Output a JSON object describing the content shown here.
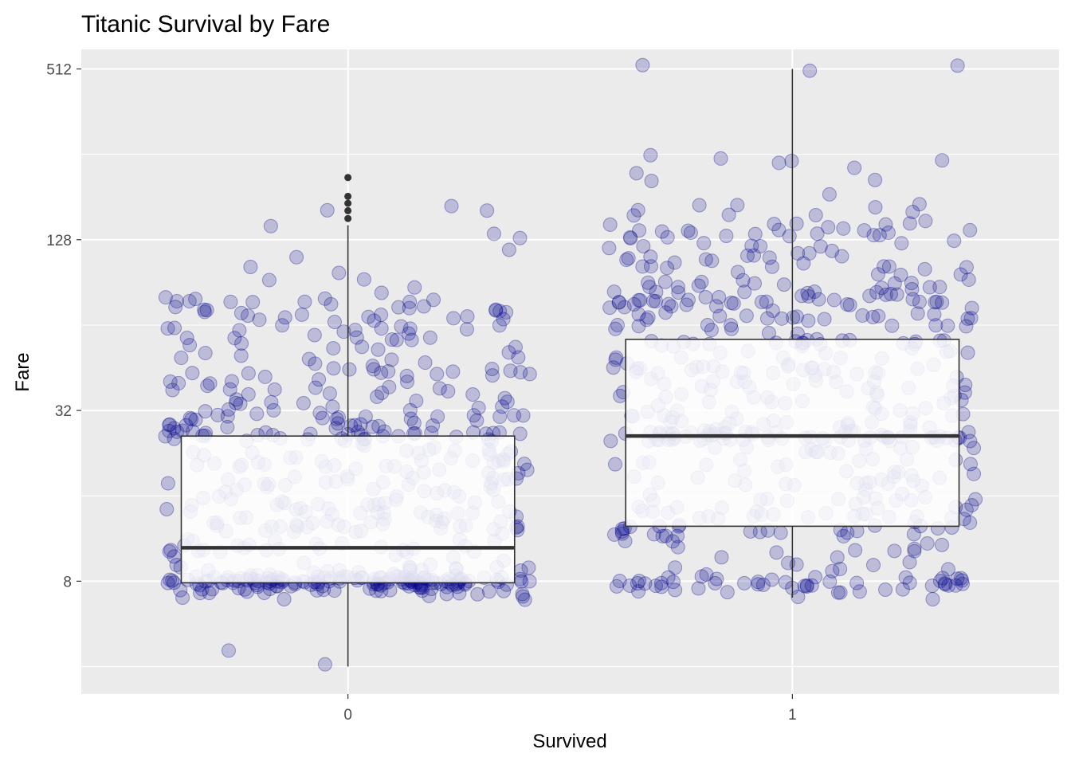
{
  "chart_data": {
    "type": "boxplot",
    "title": "Titanic Survival by Fare",
    "xlabel": "Survived",
    "ylabel": "Fare",
    "yscale": "log2",
    "ylim": [
      3.2,
      600
    ],
    "y_ticks": [
      8,
      32,
      128,
      512
    ],
    "y_tick_labels": [
      "8",
      "32",
      "128",
      "512"
    ],
    "categories": [
      "0",
      "1"
    ],
    "grid": true,
    "boxes": [
      {
        "category": "0",
        "lower_whisker": 4,
        "q1": 7.9,
        "median": 10.5,
        "q3": 26,
        "upper_whisker": 144,
        "outliers": [
          152,
          162,
          172,
          182,
          212
        ]
      },
      {
        "category": "1",
        "lower_whisker": 7.0,
        "q1": 12.5,
        "median": 26,
        "q3": 57,
        "upper_whisker": 512,
        "outliers": []
      }
    ],
    "jitter_colors": {
      "point": "#00008B",
      "point_alpha": 0.2
    },
    "points": [
      {
        "category": "0",
        "values": [
          8,
          8,
          8,
          8,
          8,
          8,
          8,
          8,
          8,
          8,
          8,
          8,
          8,
          8,
          8,
          8,
          8,
          8,
          8,
          8,
          8,
          8,
          8,
          8,
          8,
          8,
          8,
          8,
          8,
          8,
          8,
          8,
          8,
          8,
          8,
          8,
          8,
          8,
          8,
          8,
          8,
          8,
          8,
          8,
          8,
          8,
          8,
          8,
          8,
          8,
          8,
          8,
          8,
          8,
          8,
          8,
          8,
          8,
          8,
          8,
          8,
          8,
          8,
          8,
          8,
          8,
          8,
          8,
          8,
          8,
          8,
          8,
          8,
          8,
          8,
          8,
          8,
          8,
          8,
          8,
          7.5,
          7.5,
          7.5,
          7.5,
          7.5,
          7.5,
          7.5,
          7.5,
          7.5,
          7.5,
          7.5,
          7.5,
          7.5,
          7.5,
          7.5,
          7.5,
          7.5,
          7.5,
          7.5,
          7.5,
          7.5,
          7.5,
          7.5,
          7.5,
          7.5,
          7.5,
          7.5,
          7.5,
          7.5,
          7.5,
          7.8,
          7.8,
          7.8,
          7.8,
          7.8,
          7.8,
          7.8,
          7.8,
          7.8,
          7.8,
          7.8,
          7.8,
          7.8,
          7.8,
          7.8,
          7.8,
          7.8,
          7.8,
          7.8,
          7.8,
          8.2,
          8.2,
          8.2,
          8.2,
          8.2,
          8.2,
          8.2,
          8.2,
          8.2,
          8.2,
          8.2,
          8.2,
          8.2,
          8.2,
          8.2,
          8.6,
          8.6,
          8.6,
          8.6,
          8.6,
          8.6,
          8.6,
          8.6,
          8.6,
          8.6,
          7.2,
          7.2,
          7.2,
          7.2,
          7.2,
          6.9,
          6.9,
          6.8,
          9,
          9,
          9,
          9,
          9,
          9,
          9,
          9,
          9.5,
          9.5,
          9.5,
          9.5,
          9.5,
          9.5,
          10.5,
          10.5,
          10.5,
          10.5,
          10.5,
          10.5,
          10.5,
          10.5,
          10.5,
          10.5,
          10.5,
          10.5,
          10.5,
          10.5,
          10.5,
          10.5,
          10.5,
          10.5,
          10.5,
          10.5,
          11.5,
          11.5,
          11.5,
          11.5,
          11.5,
          11.5,
          11.5,
          11.5,
          12.5,
          12.5,
          12.5,
          12.5,
          12.5,
          12.5,
          12.5,
          12.5,
          12.5,
          12.5,
          12.5,
          12.5,
          12.5,
          12.5,
          12.5,
          12.5,
          12.5,
          12.5,
          12.5,
          12.5,
          12.5,
          12.5,
          12.5,
          12.5,
          12.5,
          13.5,
          13.5,
          13.5,
          13.5,
          13.5,
          13.5,
          13.5,
          13.5,
          13.5,
          13.5,
          13.5,
          13.5,
          14.5,
          14.5,
          14.5,
          14.5,
          14.5,
          14.5,
          14.5,
          14.5,
          14.5,
          14.5,
          14.5,
          14.5,
          14.5,
          14.5,
          14.5,
          14.5,
          14.5,
          15.5,
          15.5,
          15.5,
          15.5,
          15.5,
          15.5,
          15.5,
          15.5,
          15.5,
          15.5,
          15.5,
          17,
          17,
          17,
          17,
          17,
          17,
          17,
          17,
          17,
          17,
          17,
          17,
          17,
          17,
          18,
          18,
          18,
          18,
          18,
          18,
          18,
          18,
          18,
          18,
          18,
          18,
          19,
          19,
          19,
          19,
          19,
          19,
          19,
          19,
          20.5,
          20.5,
          20.5,
          20.5,
          20.5,
          20.5,
          20.5,
          20.5,
          20.5,
          20.5,
          20.5,
          20.5,
          20.5,
          20.5,
          20.5,
          20.5,
          20.5,
          22,
          22,
          22,
          22,
          22,
          22,
          22,
          22,
          22,
          22,
          23.5,
          23.5,
          23.5,
          23.5,
          23.5,
          23.5,
          23.5,
          23.5,
          23.5,
          23.5,
          26,
          26,
          26,
          26,
          26,
          26,
          26,
          26,
          26,
          26,
          26,
          26,
          26,
          26,
          26,
          26,
          26,
          26,
          26,
          26,
          26,
          26,
          26,
          26,
          26,
          26,
          26,
          26,
          26,
          26,
          27.5,
          27.5,
          27.5,
          27.5,
          27.5,
          27.5,
          27.5,
          27.5,
          27.5,
          27.5,
          27.5,
          27.5,
          27.5,
          27.5,
          29.5,
          29.5,
          29.5,
          29.5,
          29.5,
          29.5,
          29.5,
          29.5,
          29.5,
          29.5,
          29.5,
          29.5,
          29.5,
          31,
          31,
          31,
          31,
          31,
          31,
          31,
          31,
          31,
          31,
          31,
          31,
          31,
          31,
          31,
          33.5,
          33.5,
          33.5,
          33.5,
          33.5,
          33.5,
          33.5,
          33.5,
          33.5,
          36,
          36,
          36,
          36,
          36,
          36,
          36,
          36,
          36,
          39,
          39,
          39,
          39,
          39,
          39,
          39,
          39,
          39,
          39,
          42,
          42,
          42,
          42,
          42,
          42,
          42,
          42,
          42,
          42,
          42,
          42,
          45.5,
          45.5,
          45.5,
          45.5,
          45.5,
          45.5,
          45.5,
          45.5,
          45.5,
          48,
          48,
          48,
          48,
          48,
          48,
          53,
          53,
          53,
          53,
          53,
          53,
          53,
          53,
          57,
          57,
          57,
          57,
          57,
          57,
          57,
          57,
          62,
          62,
          62,
          62,
          62,
          62,
          62,
          62,
          62,
          62,
          62,
          62,
          68,
          68,
          68,
          68,
          68,
          68,
          68,
          68,
          68,
          68,
          68,
          72,
          72,
          72,
          72,
          72,
          72,
          72,
          72,
          72,
          75,
          75,
          75,
          75,
          75,
          75,
          75,
          75,
          80,
          80,
          80,
          80,
          80,
          80,
          80,
          90,
          90,
          90,
          100,
          105,
          110,
          120,
          125,
          135,
          140,
          162,
          162,
          170,
          4.7,
          4
        ]
      },
      {
        "category": "1",
        "values": [
          8,
          8,
          8,
          8,
          8,
          8,
          8,
          8,
          8,
          8,
          8,
          8,
          8,
          8,
          8,
          8,
          8,
          8,
          8,
          8,
          8,
          8,
          8,
          8,
          8,
          8,
          8,
          8,
          8,
          8,
          7.6,
          7.6,
          7.6,
          7.6,
          7.6,
          7.6,
          7.6,
          7.6,
          7.6,
          7.6,
          7.6,
          7.6,
          7.6,
          7.6,
          7.6,
          7.6,
          7.6,
          7.6,
          7.6,
          7.6,
          7.2,
          7.2,
          8.5,
          8.5,
          9,
          9,
          9,
          9,
          9,
          9,
          9.5,
          9.5,
          9.5,
          10.5,
          10.5,
          10.5,
          10.5,
          10.5,
          10.5,
          10.5,
          10.5,
          11.5,
          11.5,
          11.5,
          11.5,
          12,
          12,
          12,
          12,
          12,
          12,
          12,
          12,
          12,
          12,
          12,
          12,
          12,
          12,
          12,
          12,
          12,
          12,
          12.5,
          12.5,
          13,
          13,
          13,
          13,
          13,
          13,
          13,
          13,
          13,
          13,
          13,
          13,
          13,
          13,
          14,
          14,
          14,
          14,
          14,
          14,
          14,
          14,
          14,
          14,
          14,
          14,
          14,
          15,
          15,
          15,
          15,
          15,
          15,
          15,
          15,
          15,
          16,
          16,
          16,
          16,
          16,
          16,
          16,
          16,
          16,
          16,
          17.5,
          17.5,
          17.5,
          17.5,
          17.5,
          17.5,
          17.5,
          17.5,
          17.5,
          17.5,
          17.5,
          17.5,
          19,
          19,
          19,
          19,
          19,
          19,
          19,
          19,
          19,
          19,
          19,
          21,
          21,
          21,
          21,
          21,
          21,
          21,
          21,
          21,
          21,
          21,
          21,
          23,
          23,
          23,
          23,
          23,
          23,
          23,
          23,
          23,
          23,
          23,
          23,
          26,
          26,
          26,
          26,
          26,
          26,
          26,
          26,
          26,
          26,
          26,
          26,
          26,
          26,
          26,
          26,
          26,
          26,
          26,
          26,
          26,
          26,
          26,
          26,
          26,
          26,
          26,
          26,
          26,
          26,
          26,
          26,
          26,
          26,
          26,
          26,
          26,
          26,
          26,
          26,
          26,
          26,
          26,
          26,
          26,
          26,
          26,
          26,
          26,
          26,
          26,
          26,
          26,
          26,
          26,
          26,
          26,
          26,
          26,
          26,
          28,
          28,
          28,
          28,
          28,
          28,
          28,
          28,
          28,
          28,
          28,
          28,
          30,
          30,
          30,
          30,
          30,
          30,
          30,
          30,
          30,
          30,
          30,
          30,
          30,
          30,
          30,
          33,
          33,
          33,
          33,
          33,
          33,
          33,
          33,
          33,
          33,
          33,
          33,
          36,
          36,
          36,
          36,
          36,
          36,
          36,
          36,
          36,
          36,
          36,
          36,
          36,
          36,
          39,
          39,
          39,
          39,
          39,
          39,
          39,
          39,
          39,
          39,
          42,
          42,
          42,
          42,
          42,
          42,
          42,
          42,
          42,
          42,
          42,
          42,
          45,
          45,
          45,
          45,
          45,
          45,
          45,
          45,
          45,
          45,
          45,
          45,
          45,
          45,
          45,
          45,
          45,
          45,
          45,
          45,
          45,
          45,
          50,
          50,
          50,
          50,
          50,
          50,
          50,
          50,
          50,
          50,
          50,
          50,
          55,
          55,
          55,
          55,
          55,
          55,
          55,
          55,
          55,
          55,
          55,
          55,
          55,
          55,
          55,
          55,
          55,
          55,
          55,
          55,
          55,
          55,
          62,
          62,
          62,
          62,
          62,
          62,
          62,
          62,
          62,
          62,
          62,
          62,
          62,
          69,
          69,
          69,
          69,
          69,
          69,
          69,
          69,
          69,
          69,
          69,
          69,
          69,
          69,
          69,
          69,
          69,
          69,
          69,
          69,
          76,
          76,
          76,
          76,
          76,
          76,
          76,
          76,
          76,
          76,
          76,
          76,
          76,
          76,
          76,
          76,
          76,
          76,
          76,
          76,
          76,
          76,
          76,
          76,
          76,
          76,
          76,
          76,
          83,
          83,
          83,
          83,
          83,
          83,
          83,
          83,
          83,
          83,
          83,
          83,
          83,
          83,
          83,
          83,
          90,
          90,
          90,
          90,
          90,
          90,
          90,
          90,
          90,
          90,
          90,
          90,
          90,
          90,
          90,
          100,
          100,
          100,
          100,
          100,
          100,
          100,
          100,
          100,
          100,
          100,
          100,
          110,
          110,
          110,
          110,
          110,
          110,
          110,
          110,
          110,
          110,
          110,
          110,
          110,
          120,
          120,
          120,
          120,
          120,
          120,
          120,
          120,
          130,
          130,
          130,
          130,
          130,
          130,
          130,
          130,
          130,
          135,
          135,
          135,
          135,
          135,
          140,
          140,
          140,
          140,
          140,
          140,
          140,
          140,
          140,
          150,
          150,
          150,
          150,
          160,
          160,
          160,
          160,
          165,
          165,
          175,
          175,
          180,
          200,
          210,
          220,
          225,
          230,
          235,
          240,
          245,
          250,
          512,
          512,
          512
        ]
      }
    ]
  }
}
